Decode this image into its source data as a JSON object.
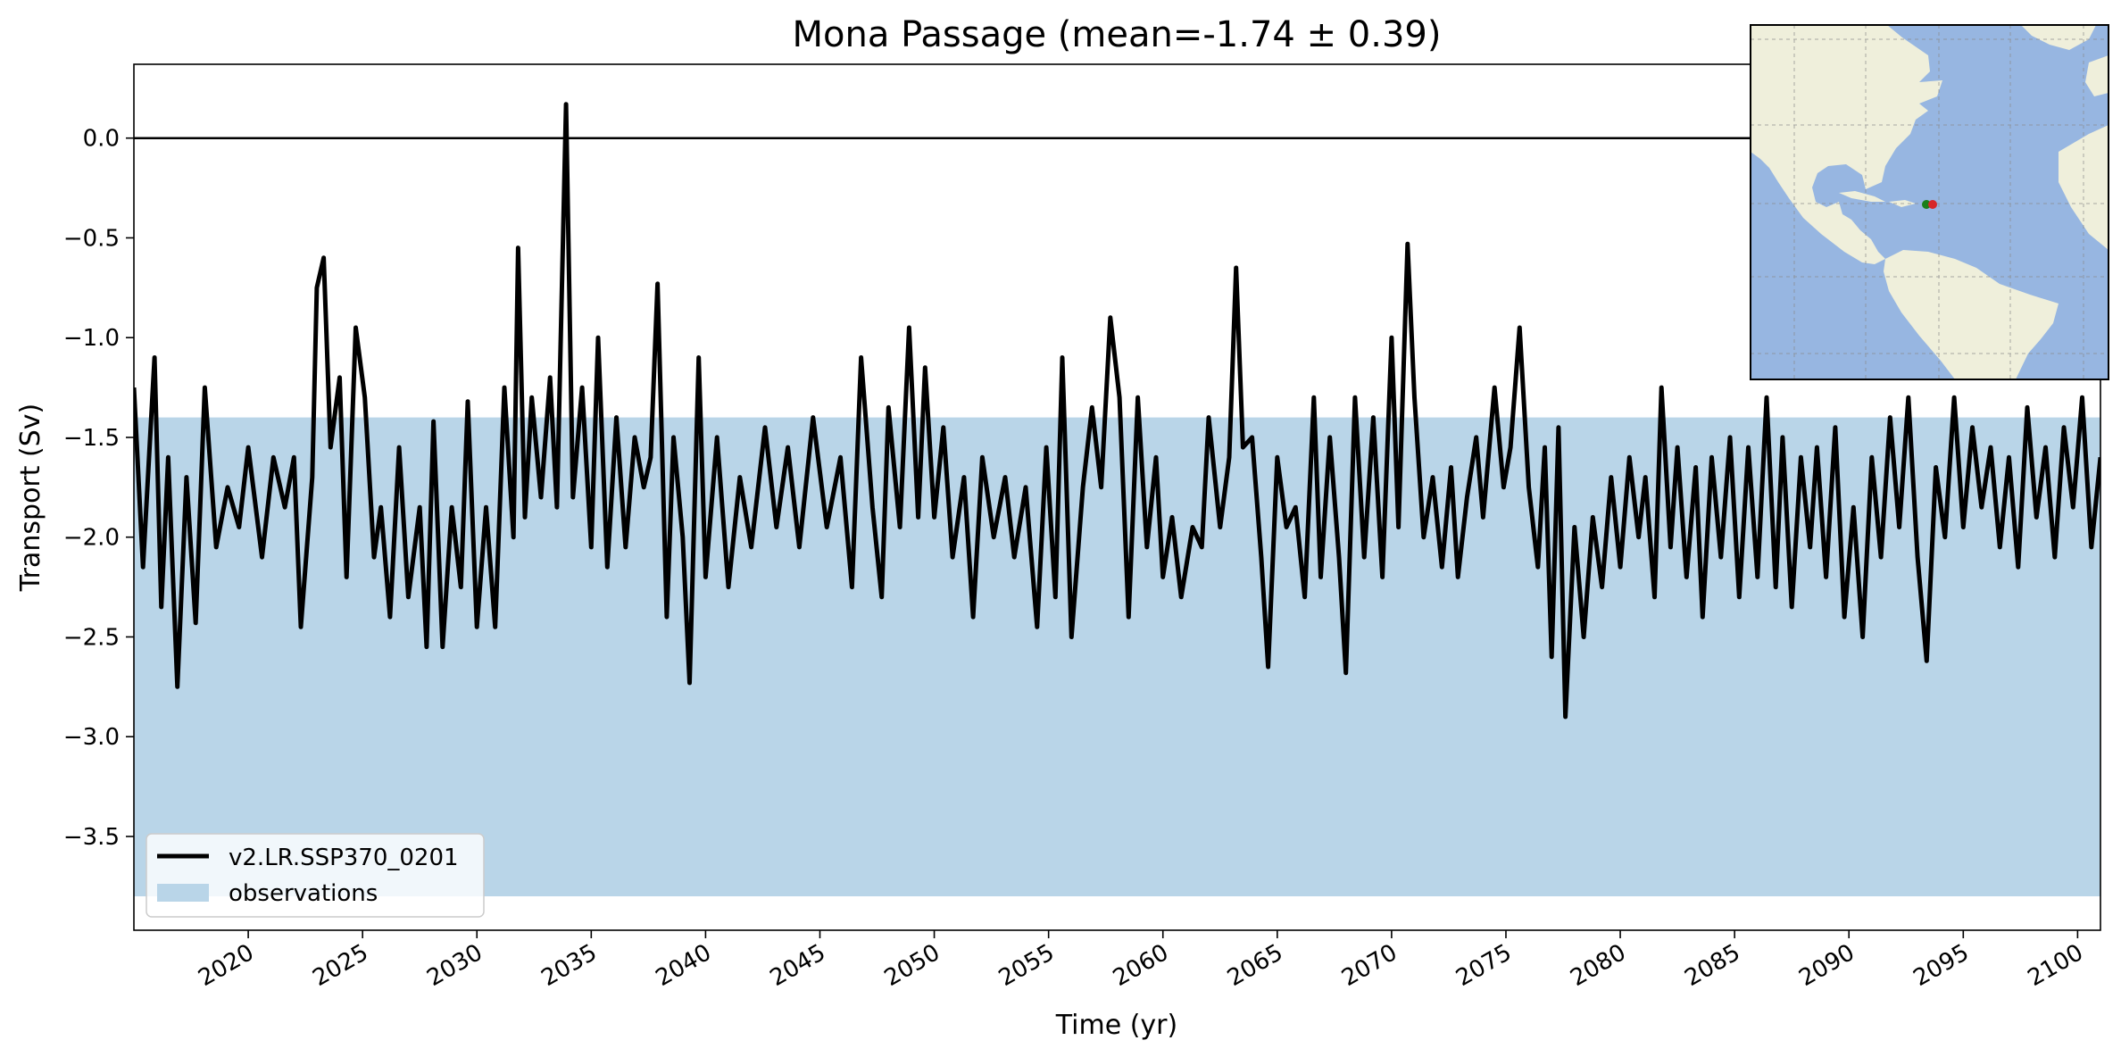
{
  "chart_data": {
    "type": "line",
    "title": "Mona Passage (mean=-1.74 ± 0.39)",
    "xlabel": "Time (yr)",
    "ylabel": "Transport (Sv)",
    "xlim": [
      2015,
      2101
    ],
    "ylim": [
      -3.97,
      0.37
    ],
    "x_ticks": [
      2020,
      2025,
      2030,
      2035,
      2040,
      2045,
      2050,
      2055,
      2060,
      2065,
      2070,
      2075,
      2080,
      2085,
      2090,
      2095,
      2100
    ],
    "x_tick_labels": [
      "2020",
      "2025",
      "2030",
      "2035",
      "2040",
      "2045",
      "2050",
      "2055",
      "2060",
      "2065",
      "2070",
      "2075",
      "2080",
      "2085",
      "2090",
      "2095",
      "2100"
    ],
    "y_ticks": [
      0.0,
      -0.5,
      -1.0,
      -1.5,
      -2.0,
      -2.5,
      -3.0,
      -3.5
    ],
    "y_tick_labels": [
      "0.0",
      "−0.5",
      "−1.0",
      "−1.5",
      "−2.0",
      "−2.5",
      "−3.0",
      "−3.5"
    ],
    "reference_line": 0.0,
    "observations_band": {
      "name": "observations",
      "lower": -3.8,
      "upper": -1.4,
      "color": "#b9d5e8"
    },
    "series": [
      {
        "name": "v2.LR.SSP370_0201",
        "color": "#000000",
        "points": [
          [
            2015.0,
            -1.25
          ],
          [
            2015.4,
            -2.15
          ],
          [
            2015.9,
            -1.1
          ],
          [
            2016.2,
            -2.35
          ],
          [
            2016.5,
            -1.6
          ],
          [
            2016.9,
            -2.75
          ],
          [
            2017.3,
            -1.7
          ],
          [
            2017.7,
            -2.43
          ],
          [
            2018.1,
            -1.25
          ],
          [
            2018.6,
            -2.05
          ],
          [
            2019.1,
            -1.75
          ],
          [
            2019.6,
            -1.95
          ],
          [
            2020.0,
            -1.55
          ],
          [
            2020.6,
            -2.1
          ],
          [
            2021.1,
            -1.6
          ],
          [
            2021.6,
            -1.85
          ],
          [
            2022.0,
            -1.6
          ],
          [
            2022.3,
            -2.45
          ],
          [
            2022.8,
            -1.7
          ],
          [
            2023.0,
            -0.75
          ],
          [
            2023.3,
            -0.6
          ],
          [
            2023.6,
            -1.55
          ],
          [
            2024.0,
            -1.2
          ],
          [
            2024.3,
            -2.2
          ],
          [
            2024.7,
            -0.95
          ],
          [
            2025.1,
            -1.3
          ],
          [
            2025.5,
            -2.1
          ],
          [
            2025.8,
            -1.85
          ],
          [
            2026.2,
            -2.4
          ],
          [
            2026.6,
            -1.55
          ],
          [
            2027.0,
            -2.3
          ],
          [
            2027.5,
            -1.85
          ],
          [
            2027.8,
            -2.55
          ],
          [
            2028.1,
            -1.42
          ],
          [
            2028.5,
            -2.55
          ],
          [
            2028.9,
            -1.85
          ],
          [
            2029.3,
            -2.25
          ],
          [
            2029.6,
            -1.32
          ],
          [
            2030.0,
            -2.45
          ],
          [
            2030.4,
            -1.85
          ],
          [
            2030.8,
            -2.45
          ],
          [
            2031.2,
            -1.25
          ],
          [
            2031.6,
            -2.0
          ],
          [
            2031.8,
            -0.55
          ],
          [
            2032.1,
            -1.9
          ],
          [
            2032.4,
            -1.3
          ],
          [
            2032.8,
            -1.8
          ],
          [
            2033.2,
            -1.2
          ],
          [
            2033.5,
            -1.85
          ],
          [
            2033.9,
            0.17
          ],
          [
            2034.2,
            -1.8
          ],
          [
            2034.6,
            -1.25
          ],
          [
            2035.0,
            -2.05
          ],
          [
            2035.3,
            -1.0
          ],
          [
            2035.7,
            -2.15
          ],
          [
            2036.1,
            -1.4
          ],
          [
            2036.5,
            -2.05
          ],
          [
            2036.9,
            -1.5
          ],
          [
            2037.3,
            -1.75
          ],
          [
            2037.6,
            -1.6
          ],
          [
            2037.9,
            -0.73
          ],
          [
            2038.3,
            -2.4
          ],
          [
            2038.6,
            -1.5
          ],
          [
            2039.0,
            -2.0
          ],
          [
            2039.3,
            -2.73
          ],
          [
            2039.7,
            -1.1
          ],
          [
            2040.0,
            -2.2
          ],
          [
            2040.5,
            -1.5
          ],
          [
            2041.0,
            -2.25
          ],
          [
            2041.5,
            -1.7
          ],
          [
            2042.0,
            -2.05
          ],
          [
            2042.6,
            -1.45
          ],
          [
            2043.1,
            -1.95
          ],
          [
            2043.6,
            -1.55
          ],
          [
            2044.1,
            -2.05
          ],
          [
            2044.7,
            -1.4
          ],
          [
            2045.3,
            -1.95
          ],
          [
            2045.9,
            -1.6
          ],
          [
            2046.4,
            -2.25
          ],
          [
            2046.8,
            -1.1
          ],
          [
            2047.3,
            -1.85
          ],
          [
            2047.7,
            -2.3
          ],
          [
            2048.0,
            -1.35
          ],
          [
            2048.5,
            -1.95
          ],
          [
            2048.9,
            -0.95
          ],
          [
            2049.3,
            -1.9
          ],
          [
            2049.6,
            -1.15
          ],
          [
            2050.0,
            -1.9
          ],
          [
            2050.4,
            -1.45
          ],
          [
            2050.8,
            -2.1
          ],
          [
            2051.3,
            -1.7
          ],
          [
            2051.7,
            -2.4
          ],
          [
            2052.1,
            -1.6
          ],
          [
            2052.6,
            -2.0
          ],
          [
            2053.1,
            -1.7
          ],
          [
            2053.5,
            -2.1
          ],
          [
            2054.0,
            -1.75
          ],
          [
            2054.5,
            -2.45
          ],
          [
            2054.9,
            -1.55
          ],
          [
            2055.3,
            -2.3
          ],
          [
            2055.6,
            -1.1
          ],
          [
            2056.0,
            -2.5
          ],
          [
            2056.5,
            -1.75
          ],
          [
            2056.9,
            -1.35
          ],
          [
            2057.3,
            -1.75
          ],
          [
            2057.7,
            -0.9
          ],
          [
            2058.1,
            -1.3
          ],
          [
            2058.5,
            -2.4
          ],
          [
            2058.9,
            -1.3
          ],
          [
            2059.3,
            -2.05
          ],
          [
            2059.7,
            -1.6
          ],
          [
            2060.0,
            -2.2
          ],
          [
            2060.4,
            -1.9
          ],
          [
            2060.8,
            -2.3
          ],
          [
            2061.3,
            -1.95
          ],
          [
            2061.7,
            -2.05
          ],
          [
            2062.0,
            -1.4
          ],
          [
            2062.5,
            -1.95
          ],
          [
            2062.9,
            -1.6
          ],
          [
            2063.2,
            -0.65
          ],
          [
            2063.5,
            -1.55
          ],
          [
            2063.9,
            -1.5
          ],
          [
            2064.3,
            -2.1
          ],
          [
            2064.6,
            -2.65
          ],
          [
            2065.0,
            -1.6
          ],
          [
            2065.4,
            -1.95
          ],
          [
            2065.8,
            -1.85
          ],
          [
            2066.2,
            -2.3
          ],
          [
            2066.6,
            -1.3
          ],
          [
            2066.9,
            -2.2
          ],
          [
            2067.3,
            -1.5
          ],
          [
            2067.7,
            -2.1
          ],
          [
            2068.0,
            -2.68
          ],
          [
            2068.4,
            -1.3
          ],
          [
            2068.8,
            -2.1
          ],
          [
            2069.2,
            -1.4
          ],
          [
            2069.6,
            -2.2
          ],
          [
            2070.0,
            -1.0
          ],
          [
            2070.3,
            -1.95
          ],
          [
            2070.7,
            -0.53
          ],
          [
            2071.0,
            -1.3
          ],
          [
            2071.4,
            -2.0
          ],
          [
            2071.8,
            -1.7
          ],
          [
            2072.2,
            -2.15
          ],
          [
            2072.6,
            -1.65
          ],
          [
            2072.9,
            -2.2
          ],
          [
            2073.3,
            -1.8
          ],
          [
            2073.7,
            -1.5
          ],
          [
            2074.0,
            -1.9
          ],
          [
            2074.5,
            -1.25
          ],
          [
            2074.9,
            -1.75
          ],
          [
            2075.2,
            -1.55
          ],
          [
            2075.6,
            -0.95
          ],
          [
            2076.0,
            -1.75
          ],
          [
            2076.4,
            -2.15
          ],
          [
            2076.7,
            -1.55
          ],
          [
            2077.0,
            -2.6
          ],
          [
            2077.3,
            -1.45
          ],
          [
            2077.6,
            -2.9
          ],
          [
            2078.0,
            -1.95
          ],
          [
            2078.4,
            -2.5
          ],
          [
            2078.8,
            -1.9
          ],
          [
            2079.2,
            -2.25
          ],
          [
            2079.6,
            -1.7
          ],
          [
            2080.0,
            -2.15
          ],
          [
            2080.4,
            -1.6
          ],
          [
            2080.8,
            -2.0
          ],
          [
            2081.1,
            -1.7
          ],
          [
            2081.5,
            -2.3
          ],
          [
            2081.8,
            -1.25
          ],
          [
            2082.2,
            -2.05
          ],
          [
            2082.5,
            -1.55
          ],
          [
            2082.9,
            -2.2
          ],
          [
            2083.3,
            -1.65
          ],
          [
            2083.6,
            -2.4
          ],
          [
            2084.0,
            -1.6
          ],
          [
            2084.4,
            -2.1
          ],
          [
            2084.8,
            -1.5
          ],
          [
            2085.2,
            -2.3
          ],
          [
            2085.6,
            -1.55
          ],
          [
            2086.0,
            -2.2
          ],
          [
            2086.4,
            -1.3
          ],
          [
            2086.8,
            -2.25
          ],
          [
            2087.1,
            -1.5
          ],
          [
            2087.5,
            -2.35
          ],
          [
            2087.9,
            -1.6
          ],
          [
            2088.3,
            -2.05
          ],
          [
            2088.6,
            -1.55
          ],
          [
            2089.0,
            -2.2
          ],
          [
            2089.4,
            -1.45
          ],
          [
            2089.8,
            -2.4
          ],
          [
            2090.2,
            -1.85
          ],
          [
            2090.6,
            -2.5
          ],
          [
            2091.0,
            -1.6
          ],
          [
            2091.4,
            -2.1
          ],
          [
            2091.8,
            -1.4
          ],
          [
            2092.2,
            -1.95
          ],
          [
            2092.6,
            -1.3
          ],
          [
            2093.0,
            -2.1
          ],
          [
            2093.4,
            -2.62
          ],
          [
            2093.8,
            -1.65
          ],
          [
            2094.2,
            -2.0
          ],
          [
            2094.6,
            -1.3
          ],
          [
            2095.0,
            -1.95
          ],
          [
            2095.4,
            -1.45
          ],
          [
            2095.8,
            -1.85
          ],
          [
            2096.2,
            -1.55
          ],
          [
            2096.6,
            -2.05
          ],
          [
            2097.0,
            -1.6
          ],
          [
            2097.4,
            -2.15
          ],
          [
            2097.8,
            -1.35
          ],
          [
            2098.2,
            -1.9
          ],
          [
            2098.6,
            -1.55
          ],
          [
            2099.0,
            -2.1
          ],
          [
            2099.4,
            -1.45
          ],
          [
            2099.8,
            -1.85
          ],
          [
            2100.2,
            -1.3
          ],
          [
            2100.6,
            -2.05
          ],
          [
            2101.0,
            -1.6
          ]
        ]
      }
    ],
    "legend": {
      "placement": "lower-left",
      "entries": [
        "v2.LR.SSP370_0201",
        "observations"
      ]
    },
    "inset_map": {
      "placement": "top-right",
      "ocean_color": "#97b6e1",
      "land_color": "#efefdb",
      "markers": [
        {
          "lon": -68.3,
          "lat": 18.3,
          "color": "#1a7f1a"
        },
        {
          "lon": -67.2,
          "lat": 18.3,
          "color": "#d62728"
        }
      ]
    }
  }
}
